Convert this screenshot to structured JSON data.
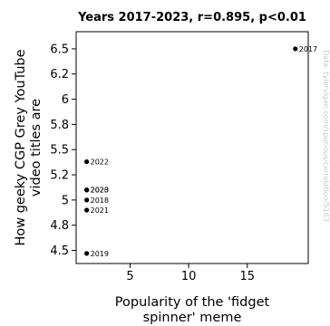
{
  "chart_data": {
    "type": "scatter",
    "title": "Years 2017-2023, r=0.895, p<0.01",
    "xlabel": [
      "Popularity of the 'fidget",
      "spinner' meme"
    ],
    "ylabel": [
      "How geeky CGP Grey YouTube",
      "video titles are"
    ],
    "xlim": [
      0.4,
      20.2
    ],
    "ylim": [
      4.37,
      6.67
    ],
    "xticks": [
      5,
      10,
      15
    ],
    "xtick_labels": [
      "5",
      "10",
      "15"
    ],
    "yticks": [
      4.5,
      4.75,
      5.0,
      5.25,
      5.5,
      5.75,
      6.0,
      6.25,
      6.5
    ],
    "ytick_labels": [
      "4.5",
      "4.8",
      "5",
      "5.2",
      "5.5",
      "5.8",
      "6",
      "6.2",
      "6.5"
    ],
    "grid": false,
    "points": [
      {
        "label": "2017",
        "x": 19.1,
        "y": 6.5
      },
      {
        "label": "2018",
        "x": 1.3,
        "y": 5.0
      },
      {
        "label": "2019",
        "x": 1.3,
        "y": 4.47
      },
      {
        "label": "2020",
        "x": 1.3,
        "y": 5.1
      },
      {
        "label": "2021",
        "x": 1.3,
        "y": 4.9
      },
      {
        "label": "2022",
        "x": 1.3,
        "y": 5.38
      },
      {
        "label": "2023",
        "x": 1.3,
        "y": 5.1
      }
    ],
    "point_color": "#000000"
  },
  "watermark": "Data: tylervigen.com/spurious/correlation/5163"
}
